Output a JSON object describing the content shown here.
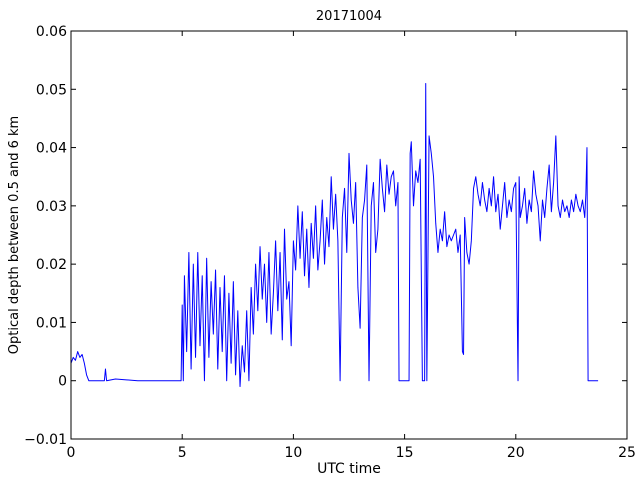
{
  "chart_data": {
    "type": "line",
    "title": "20171004",
    "xlabel": "UTC time",
    "ylabel": "Optical depth between 0.5 and 6 km",
    "xlim": [
      0,
      25
    ],
    "ylim": [
      -0.01,
      0.06
    ],
    "xticks": [
      0,
      5,
      10,
      15,
      20,
      25
    ],
    "xtick_labels": [
      "0",
      "5",
      "10",
      "15",
      "20",
      "25"
    ],
    "yticks": [
      -0.01,
      0,
      0.01,
      0.02,
      0.03,
      0.04,
      0.05,
      0.06
    ],
    "ytick_labels": [
      "−0.01",
      "0",
      "0.01",
      "0.02",
      "0.03",
      "0.04",
      "0.05",
      "0.06"
    ],
    "grid": false,
    "legend": "none",
    "series": [
      {
        "color": "#0000ff",
        "x": [
          0.0,
          0.1,
          0.2,
          0.3,
          0.4,
          0.5,
          0.6,
          0.7,
          0.8,
          0.9,
          1.0,
          1.5,
          1.55,
          1.6,
          2.0,
          3.0,
          4.0,
          4.8,
          4.95,
          5.0,
          5.05,
          5.1,
          5.2,
          5.3,
          5.4,
          5.5,
          5.6,
          5.7,
          5.8,
          5.9,
          6.0,
          6.1,
          6.2,
          6.3,
          6.4,
          6.5,
          6.6,
          6.7,
          6.8,
          6.9,
          7.0,
          7.1,
          7.2,
          7.3,
          7.4,
          7.5,
          7.6,
          7.7,
          7.8,
          7.9,
          8.0,
          8.1,
          8.2,
          8.3,
          8.4,
          8.5,
          8.6,
          8.7,
          8.8,
          8.9,
          9.0,
          9.1,
          9.2,
          9.3,
          9.4,
          9.5,
          9.6,
          9.7,
          9.8,
          9.9,
          10.0,
          10.1,
          10.2,
          10.3,
          10.4,
          10.5,
          10.6,
          10.7,
          10.8,
          10.9,
          11.0,
          11.1,
          11.2,
          11.3,
          11.4,
          11.5,
          11.6,
          11.7,
          11.8,
          11.9,
          12.0,
          12.1,
          12.2,
          12.3,
          12.4,
          12.5,
          12.6,
          12.7,
          12.8,
          12.9,
          13.0,
          13.1,
          13.2,
          13.3,
          13.4,
          13.5,
          13.6,
          13.7,
          13.8,
          13.9,
          14.0,
          14.1,
          14.2,
          14.3,
          14.4,
          14.5,
          14.6,
          14.7,
          14.75,
          14.8,
          15.0,
          15.2,
          15.25,
          15.3,
          15.4,
          15.5,
          15.6,
          15.7,
          15.8,
          15.9,
          15.95,
          16.0,
          16.1,
          16.2,
          16.3,
          16.4,
          16.5,
          16.6,
          16.7,
          16.8,
          16.9,
          17.0,
          17.1,
          17.2,
          17.3,
          17.4,
          17.5,
          17.6,
          17.65,
          17.7,
          17.8,
          17.9,
          18.0,
          18.1,
          18.2,
          18.3,
          18.4,
          18.5,
          18.6,
          18.7,
          18.8,
          18.9,
          19.0,
          19.1,
          19.2,
          19.3,
          19.4,
          19.5,
          19.6,
          19.7,
          19.8,
          19.9,
          20.0,
          20.1,
          20.15,
          20.2,
          20.3,
          20.4,
          20.5,
          20.6,
          20.7,
          20.8,
          20.9,
          21.0,
          21.1,
          21.2,
          21.3,
          21.4,
          21.5,
          21.6,
          21.7,
          21.8,
          21.9,
          22.0,
          22.1,
          22.2,
          22.3,
          22.4,
          22.5,
          22.6,
          22.7,
          22.8,
          22.9,
          23.0,
          23.1,
          23.15,
          23.2,
          23.25,
          23.3,
          23.4,
          23.5,
          23.6,
          23.7
        ],
        "y": [
          0.003,
          0.004,
          0.0035,
          0.005,
          0.004,
          0.0045,
          0.003,
          0.001,
          0.0,
          0.0,
          0.0,
          0.0,
          0.002,
          0.0,
          0.0003,
          0.0,
          0.0,
          0.0,
          0.0,
          0.013,
          0.0,
          0.018,
          0.005,
          0.022,
          0.002,
          0.02,
          0.004,
          0.022,
          0.006,
          0.018,
          0.0,
          0.021,
          0.004,
          0.017,
          0.008,
          0.019,
          0.002,
          0.016,
          0.005,
          0.018,
          0.0,
          0.015,
          0.003,
          0.017,
          0.001,
          0.012,
          -0.001,
          0.006,
          0.0015,
          0.012,
          0.0,
          0.016,
          0.008,
          0.02,
          0.012,
          0.023,
          0.014,
          0.02,
          0.01,
          0.022,
          0.008,
          0.015,
          0.024,
          0.012,
          0.022,
          0.007,
          0.026,
          0.014,
          0.017,
          0.006,
          0.024,
          0.019,
          0.03,
          0.021,
          0.029,
          0.018,
          0.026,
          0.016,
          0.027,
          0.021,
          0.03,
          0.019,
          0.024,
          0.031,
          0.02,
          0.028,
          0.023,
          0.035,
          0.026,
          0.032,
          0.024,
          0.0,
          0.028,
          0.033,
          0.022,
          0.039,
          0.031,
          0.027,
          0.034,
          0.016,
          0.009,
          0.028,
          0.031,
          0.037,
          0.0,
          0.03,
          0.034,
          0.022,
          0.026,
          0.038,
          0.033,
          0.029,
          0.037,
          0.032,
          0.035,
          0.036,
          0.03,
          0.034,
          0.0,
          0.0,
          0.0,
          0.0,
          0.039,
          0.041,
          0.03,
          0.036,
          0.034,
          0.038,
          0.0,
          0.0,
          0.051,
          0.0,
          0.042,
          0.039,
          0.035,
          0.027,
          0.022,
          0.026,
          0.024,
          0.029,
          0.023,
          0.025,
          0.024,
          0.025,
          0.026,
          0.022,
          0.025,
          0.005,
          0.0045,
          0.028,
          0.022,
          0.02,
          0.024,
          0.033,
          0.035,
          0.032,
          0.03,
          0.034,
          0.031,
          0.029,
          0.033,
          0.03,
          0.035,
          0.029,
          0.032,
          0.026,
          0.03,
          0.034,
          0.028,
          0.031,
          0.029,
          0.033,
          0.034,
          0.0,
          0.035,
          0.028,
          0.03,
          0.033,
          0.027,
          0.031,
          0.029,
          0.036,
          0.032,
          0.03,
          0.024,
          0.031,
          0.028,
          0.033,
          0.037,
          0.029,
          0.034,
          0.042,
          0.03,
          0.028,
          0.031,
          0.029,
          0.03,
          0.028,
          0.031,
          0.029,
          0.032,
          0.03,
          0.029,
          0.031,
          0.028,
          0.032,
          0.04,
          0.0,
          0.0,
          0.0,
          0.0,
          0.0,
          0.0
        ]
      }
    ]
  }
}
